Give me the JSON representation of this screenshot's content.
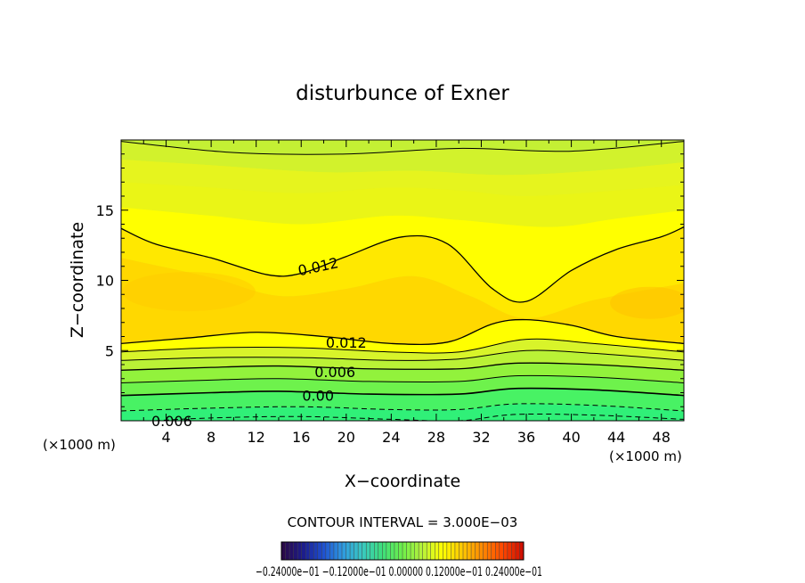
{
  "chart_data": {
    "type": "heatmap",
    "title": "disturbunce of Exner",
    "xlabel": "X−coordinate",
    "ylabel": "Z−coordinate",
    "x_unit_left": "(×1000 m)",
    "x_unit_right": "(×1000 m)",
    "xlim": [
      0,
      50
    ],
    "ylim": [
      0,
      20
    ],
    "x_ticks": [
      4,
      8,
      12,
      16,
      20,
      24,
      28,
      32,
      36,
      40,
      44,
      48
    ],
    "y_ticks": [
      5,
      10,
      15
    ],
    "contour_interval_text": "CONTOUR INTERVAL = 3.000E−03",
    "contour_labels": [
      {
        "text": "0.012",
        "x": 17.5,
        "y": 11.0
      },
      {
        "text": "0.012",
        "x": 20.0,
        "y": 5.6
      },
      {
        "text": "0.006",
        "x": 19.0,
        "y": 3.5
      },
      {
        "text": "0.00",
        "x": 17.5,
        "y": 1.8
      },
      {
        "text": "0.006",
        "x": 4.5,
        "y": 0.0
      }
    ],
    "colorbar": {
      "min": -0.024,
      "max": 0.024,
      "tick_text": "−0.24000e−01   −0.12000e−01   0.00000   0.12000e−01   0.24000e−01",
      "colors": [
        "#2a0a4a",
        "#1c1c8c",
        "#1e4fd0",
        "#2e9be0",
        "#39c9c0",
        "#3ee07a",
        "#6ef04a",
        "#b8f23a",
        "#ffff00",
        "#ffc800",
        "#ff8a00",
        "#ff4a00",
        "#d01000"
      ]
    },
    "fill_colors": {
      "band_m2": "#22f07c",
      "band_m1": "#30f078",
      "band_0": "#48f264",
      "band_1": "#6ef24c",
      "band_2": "#92f23c",
      "band_3": "#baf236",
      "band_4": "#d8f42a",
      "band_5": "#eaf516",
      "band_6": "#ffff00",
      "band_7": "#ffe800",
      "band_8": "#ffd800",
      "upper_1": "#e6f41e",
      "upper_2": "#d2f22c",
      "upper_3": "#c4f034"
    }
  }
}
